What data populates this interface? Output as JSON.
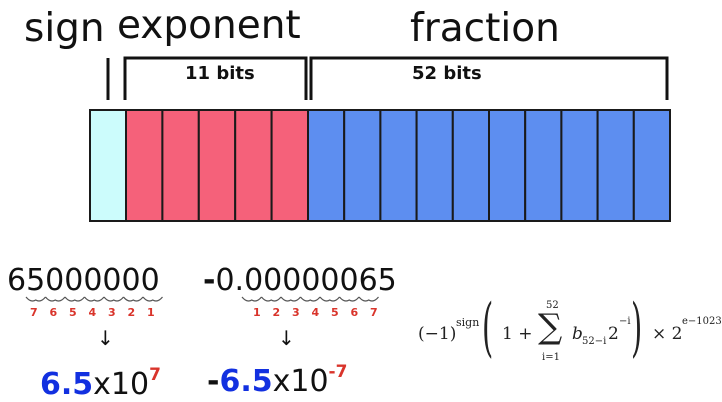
{
  "headers": {
    "sign": "sign",
    "exponent": "exponent",
    "fraction": "fraction"
  },
  "brackets": {
    "exponent_bits": "11 bits",
    "fraction_bits": "52 bits"
  },
  "register": {
    "sign_cells": 1,
    "exponent_cells": 5,
    "fraction_cells": 10,
    "colors": {
      "sign": "#ccfcfc",
      "exponent": "#f5617a",
      "fraction": "#5d8ef0",
      "border": "#1a1a1a"
    }
  },
  "examples": [
    {
      "number": "65000000",
      "positions": [
        "7",
        "6",
        "5",
        "4",
        "3",
        "2",
        "1"
      ],
      "arrow": "↓",
      "mantissa": "6.5",
      "times": "x10",
      "exponent": "7"
    },
    {
      "sign": "-",
      "number": "0.00000065",
      "positions": [
        "1",
        "2",
        "3",
        "4",
        "5",
        "6",
        "7"
      ],
      "arrow": "↓",
      "mantissa": "6.5",
      "times": "x10",
      "exponent": "-7"
    }
  ],
  "formula": {
    "neg": "(−1)",
    "sign_exp": "sign",
    "one_plus": "1 +",
    "sum_upper": "52",
    "sum_lower": "i=1",
    "sigma": "∑",
    "term_b": "b",
    "term_b_sub": "52−i",
    "term_two": "2",
    "term_two_exp": "−i",
    "times": "× 2",
    "final_exp": "e−1023"
  }
}
